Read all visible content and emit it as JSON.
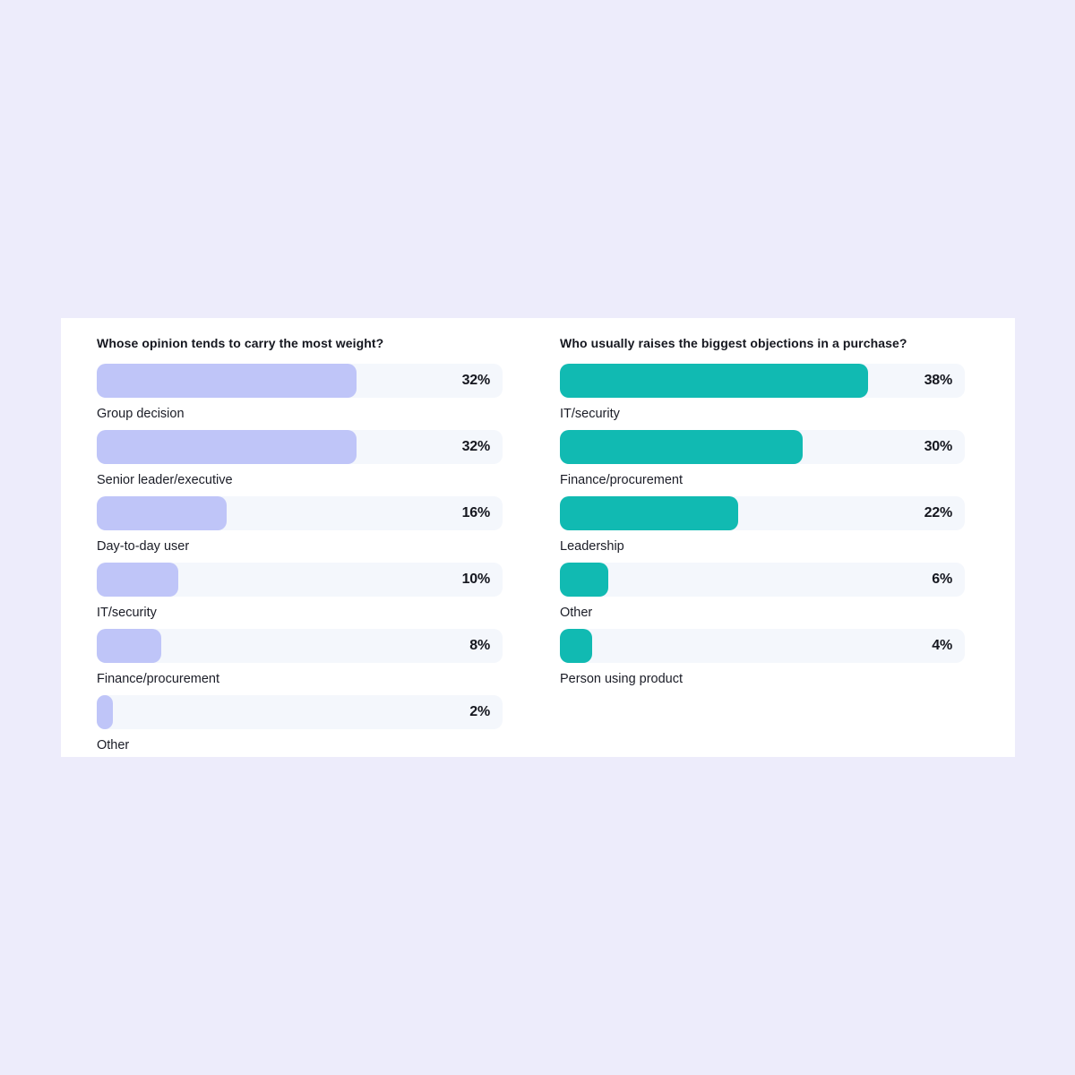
{
  "page": {
    "background_color": "#EDECFB",
    "card_background_color": "#FFFFFF",
    "track_color": "#F4F7FC",
    "text_color": "#15171F"
  },
  "chart_data": [
    {
      "type": "bar",
      "orientation": "horizontal",
      "title": "Whose opinion tends to carry the most weight?",
      "unit": "%",
      "axis_max": 50,
      "grid": false,
      "legend": false,
      "bar_color": "#BFC5F8",
      "categories": [
        "Group decision",
        "Senior leader/executive",
        "Day-to-day user",
        "IT/security",
        "Finance/procurement",
        "Other"
      ],
      "values": [
        32,
        32,
        16,
        10,
        8,
        2
      ],
      "value_labels": [
        "32%",
        "32%",
        "16%",
        "10%",
        "8%",
        "2%"
      ]
    },
    {
      "type": "bar",
      "orientation": "horizontal",
      "title": "Who usually raises the biggest objections in a purchase?",
      "unit": "%",
      "axis_max": 50,
      "grid": false,
      "legend": false,
      "bar_color": "#11BAB2",
      "categories": [
        "IT/security",
        "Finance/procurement",
        "Leadership",
        "Other",
        "Person using product"
      ],
      "values": [
        38,
        30,
        22,
        6,
        4
      ],
      "value_labels": [
        "38%",
        "30%",
        "22%",
        "6%",
        "4%"
      ]
    }
  ]
}
